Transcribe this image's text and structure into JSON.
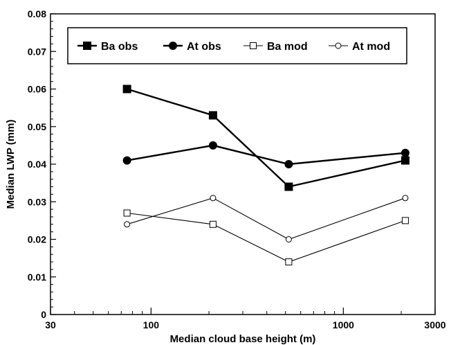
{
  "chart_data": {
    "type": "line",
    "xlabel": "Median cloud base height (m)",
    "ylabel": "Median LWP (mm)",
    "xscale": "log",
    "xlim": [
      30,
      3000
    ],
    "ylim": [
      0,
      0.08
    ],
    "x_major_ticks": [
      30,
      100,
      1000,
      3000
    ],
    "x_tick_labels": [
      "30",
      "100",
      "1000",
      "3000"
    ],
    "y_ticks": [
      0,
      0.01,
      0.02,
      0.03,
      0.04,
      0.05,
      0.06,
      0.07,
      0.08
    ],
    "y_tick_labels": [
      "0",
      "0.01",
      "0.02",
      "0.03",
      "0.04",
      "0.05",
      "0.06",
      "0.07",
      "0.08"
    ],
    "grid": false,
    "legend_position": "top",
    "series": [
      {
        "name": "Ba obs",
        "marker": "filled-square",
        "line": "thick",
        "x": [
          75,
          210,
          520,
          2100
        ],
        "y": [
          0.06,
          0.053,
          0.034,
          0.041
        ]
      },
      {
        "name": "At obs",
        "marker": "filled-circle",
        "line": "thick",
        "x": [
          75,
          210,
          520,
          2100
        ],
        "y": [
          0.041,
          0.045,
          0.04,
          0.043
        ]
      },
      {
        "name": "Ba mod",
        "marker": "open-square",
        "line": "thin",
        "x": [
          75,
          210,
          520,
          2100
        ],
        "y": [
          0.027,
          0.024,
          0.014,
          0.025
        ]
      },
      {
        "name": "At mod",
        "marker": "open-circle",
        "line": "thin",
        "x": [
          75,
          210,
          520,
          2100
        ],
        "y": [
          0.024,
          0.031,
          0.02,
          0.031
        ]
      }
    ]
  }
}
